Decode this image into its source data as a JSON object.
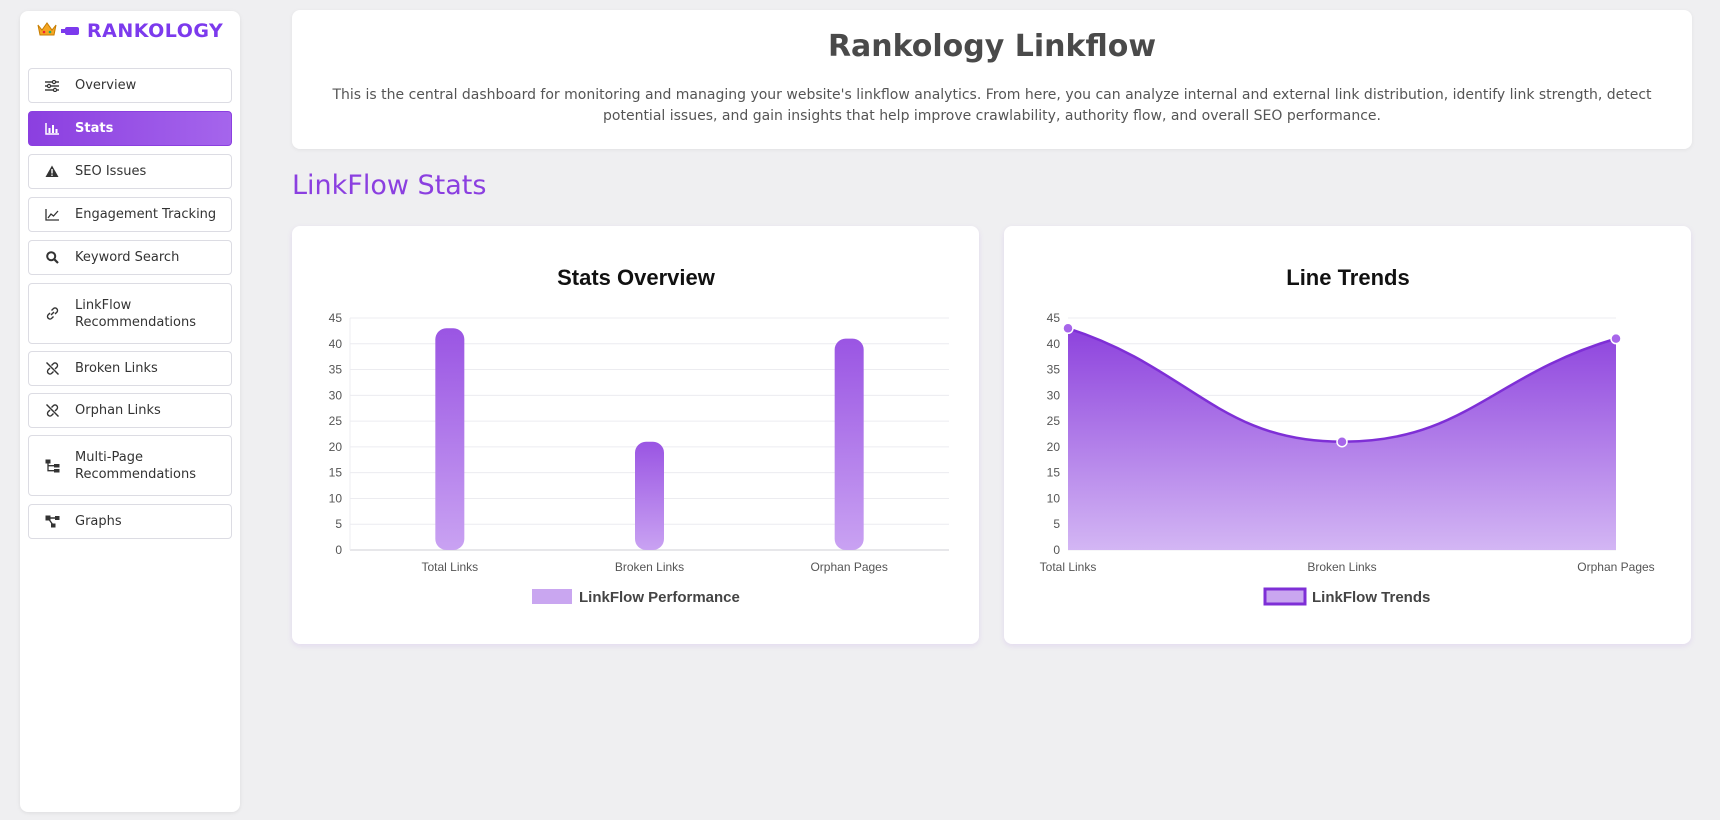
{
  "sidebar": {
    "brand": "RANKOLOGY",
    "items": [
      {
        "label": "Overview",
        "icon": "sliders-icon",
        "active": false
      },
      {
        "label": "Stats",
        "icon": "bar-chart-icon",
        "active": true
      },
      {
        "label": "SEO Issues",
        "icon": "warning-icon",
        "active": false
      },
      {
        "label": "Engagement Tracking",
        "icon": "line-chart-icon",
        "active": false
      },
      {
        "label": "Keyword Search",
        "icon": "search-icon",
        "active": false
      },
      {
        "label": "LinkFlow\nRecommendations",
        "icon": "link-icon",
        "active": false
      },
      {
        "label": "Broken Links",
        "icon": "broken-link-icon",
        "active": false
      },
      {
        "label": "Orphan Links",
        "icon": "broken-link-icon",
        "active": false
      },
      {
        "label": "Multi-Page\nRecommendations",
        "icon": "sitemap-icon",
        "active": false
      },
      {
        "label": "Graphs",
        "icon": "graph-icon",
        "active": false
      }
    ]
  },
  "header": {
    "title": "Rankology Linkflow",
    "description": "This is the central dashboard for monitoring and managing your website's linkflow analytics. From here, you can analyze internal and external link distribution, identify link strength, detect potential issues, and gain insights that help improve crawlability, authority flow, and overall SEO performance."
  },
  "section_title": "LinkFlow Stats",
  "colors": {
    "accent": "#8b3fe0",
    "accent_light": "#c9a6f0"
  },
  "chart_data": [
    {
      "type": "bar",
      "title": "Stats Overview",
      "categories": [
        "Total Links",
        "Broken Links",
        "Orphan Pages"
      ],
      "series": [
        {
          "name": "LinkFlow Performance",
          "values": [
            43,
            21,
            41
          ]
        }
      ],
      "ylim": [
        0,
        45
      ],
      "yticks": [
        0,
        5,
        10,
        15,
        20,
        25,
        30,
        35,
        40,
        45
      ],
      "grid": true,
      "legend": "bottom"
    },
    {
      "type": "area",
      "title": "Line Trends",
      "categories": [
        "Total Links",
        "Broken Links",
        "Orphan Pages"
      ],
      "series": [
        {
          "name": "LinkFlow Trends",
          "values": [
            43,
            21,
            41
          ]
        }
      ],
      "ylim": [
        0,
        45
      ],
      "yticks": [
        0,
        5,
        10,
        15,
        20,
        25,
        30,
        35,
        40,
        45
      ],
      "grid": true,
      "legend": "bottom"
    }
  ]
}
